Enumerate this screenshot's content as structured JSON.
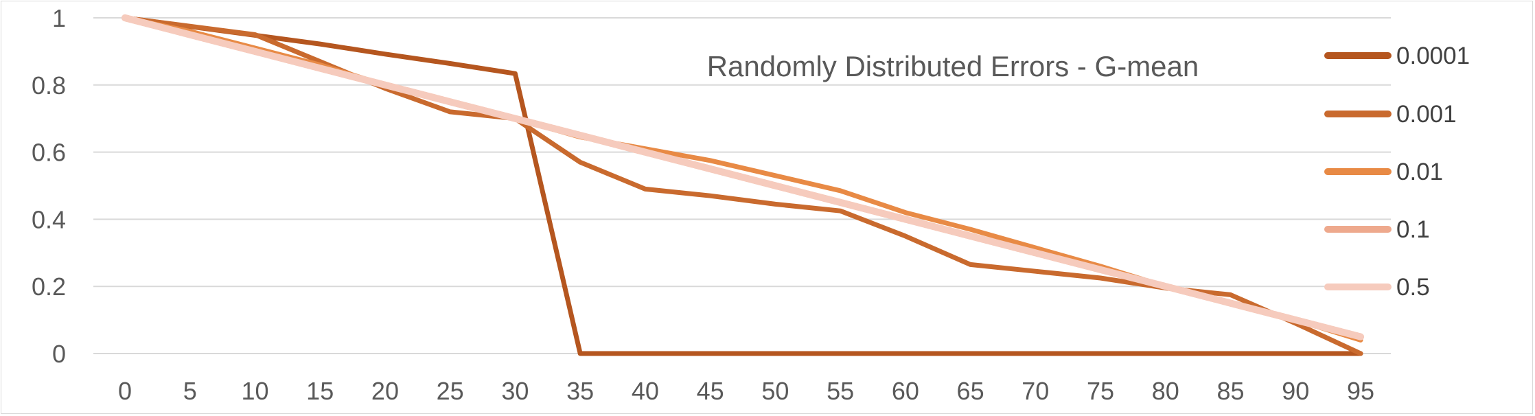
{
  "chart_data": {
    "type": "line",
    "title": "Randomly Distributed Errors - G-mean",
    "xlabel": "",
    "ylabel": "",
    "x": [
      0,
      5,
      10,
      15,
      20,
      25,
      30,
      35,
      40,
      45,
      50,
      55,
      60,
      65,
      70,
      75,
      80,
      85,
      90,
      95
    ],
    "ylim": [
      0,
      1
    ],
    "yticks": [
      "0",
      "0.2",
      "0.4",
      "0.6",
      "0.8",
      "1"
    ],
    "grid": true,
    "legend_position": "right",
    "series": [
      {
        "name": "0.0001",
        "color": "#b5561f",
        "values": [
          1,
          0.974,
          0.948,
          0.922,
          0.892,
          0.864,
          0.834,
          0,
          0,
          0,
          0,
          0,
          0,
          0,
          0,
          0,
          0,
          0,
          0,
          0
        ]
      },
      {
        "name": "0.001",
        "color": "#c96a2e",
        "values": [
          1,
          0.975,
          0.95,
          0.87,
          0.79,
          0.72,
          0.7,
          0.57,
          0.49,
          0.47,
          0.445,
          0.425,
          0.35,
          0.265,
          0.245,
          0.225,
          0.195,
          0.175,
          0.09,
          0
        ]
      },
      {
        "name": "0.01",
        "color": "#e88a45",
        "values": [
          1,
          0.96,
          0.91,
          0.86,
          0.8,
          0.75,
          0.7,
          0.645,
          0.61,
          0.575,
          0.53,
          0.485,
          0.42,
          0.37,
          0.315,
          0.26,
          0.2,
          0.15,
          0.1,
          0.04
        ]
      },
      {
        "name": "0.1",
        "color": "#eea98d",
        "values": [
          1,
          0.95,
          0.9,
          0.85,
          0.8,
          0.75,
          0.7,
          0.65,
          0.6,
          0.55,
          0.5,
          0.45,
          0.4,
          0.35,
          0.3,
          0.25,
          0.2,
          0.15,
          0.1,
          0.05
        ]
      },
      {
        "name": "0.5",
        "color": "#f6cbbd",
        "values": [
          1,
          0.95,
          0.9,
          0.85,
          0.8,
          0.75,
          0.7,
          0.65,
          0.6,
          0.55,
          0.5,
          0.45,
          0.4,
          0.35,
          0.3,
          0.25,
          0.2,
          0.15,
          0.1,
          0.05
        ]
      }
    ]
  }
}
